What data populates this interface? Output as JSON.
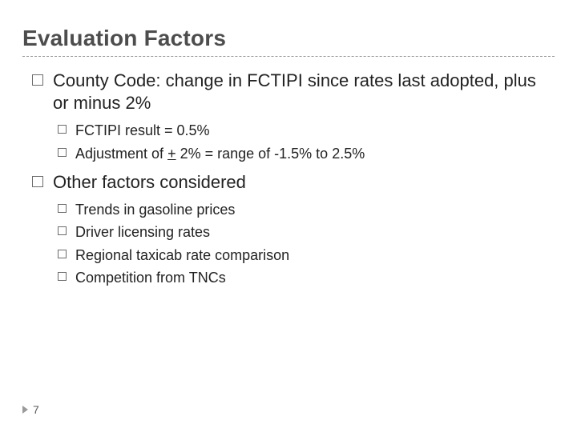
{
  "title": "Evaluation Factors",
  "colors": {
    "title": "#4d4d4d",
    "text": "#222222",
    "divider": "#9a9a9a",
    "bullet_border": "#6b6b6b",
    "footer_marker": "#9a9a9a",
    "footer_text": "#5a5a5a",
    "background": "#ffffff"
  },
  "typography": {
    "title_fontsize": 28,
    "lvl1_fontsize": 22,
    "lvl2_fontsize": 18,
    "footer_fontsize": 14,
    "font_family": "Arial"
  },
  "bullets": {
    "lvl1_size": 12,
    "lvl2_size": 9,
    "shape": "hollow-square"
  },
  "items": [
    {
      "text": "County Code:  change in FCTIPI since rates last adopted, plus or minus 2%",
      "children": [
        {
          "text": "FCTIPI result = 0.5%"
        },
        {
          "prefix": "Adjustment of ",
          "underlined": "+",
          "suffix": " 2% = range of -1.5% to 2.5%"
        }
      ]
    },
    {
      "text": "Other factors considered",
      "children": [
        {
          "text": "Trends in gasoline prices"
        },
        {
          "text": "Driver licensing rates"
        },
        {
          "text": "Regional taxicab rate comparison"
        },
        {
          "text": "Competition from TNCs"
        }
      ]
    }
  ],
  "footer": {
    "page_number": "7"
  }
}
